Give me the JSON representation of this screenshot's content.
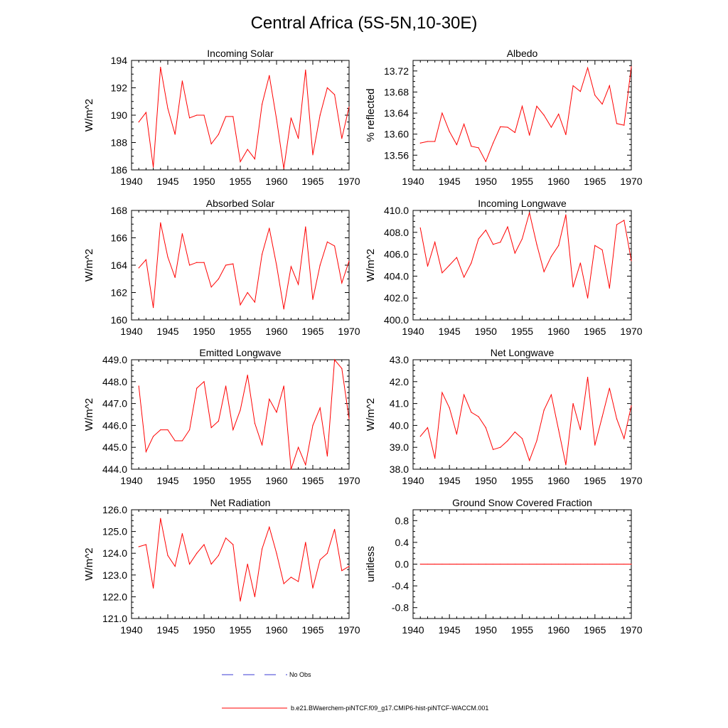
{
  "figure": {
    "title": "Central Africa (5S-5N,10-30E)"
  },
  "legend": {
    "entries": [
      {
        "label": "No Obs",
        "color": "#3b3bd6",
        "style": "dashed"
      },
      {
        "label": "b.e21.BWaerchem-piNTCF.f09_g17.CMIP6-hist-piNTCF-WACCM.001",
        "color": "#ff0000",
        "style": "solid"
      }
    ]
  },
  "chart_data": [
    {
      "type": "line",
      "title": "Incoming Solar",
      "ylabel": "W/m^2",
      "xlim": [
        1940,
        1970
      ],
      "ylim": [
        186,
        194
      ],
      "xticks": [
        "1940",
        "1945",
        "1950",
        "1955",
        "1960",
        "1965",
        "1970"
      ],
      "yticks": [
        "186",
        "188",
        "190",
        "192",
        "194"
      ],
      "ytick_values": [
        186,
        188,
        190,
        192,
        194
      ],
      "color": "#ff0000",
      "x": [
        1941,
        1942,
        1943,
        1944,
        1945,
        1946,
        1947,
        1948,
        1949,
        1950,
        1951,
        1952,
        1953,
        1954,
        1955,
        1956,
        1957,
        1958,
        1959,
        1960,
        1961,
        1962,
        1963,
        1964,
        1965,
        1966,
        1967,
        1968,
        1969,
        1970
      ],
      "values": [
        189.5,
        190.2,
        186.2,
        193.5,
        190.5,
        188.6,
        192.5,
        189.8,
        190.0,
        190.0,
        187.9,
        188.6,
        189.9,
        189.9,
        186.6,
        187.5,
        186.8,
        190.8,
        192.9,
        189.7,
        186.1,
        189.8,
        188.3,
        193.3,
        187.1,
        190.0,
        192.0,
        191.5,
        188.3,
        190.6
      ]
    },
    {
      "type": "line",
      "title": "Albedo",
      "ylabel": "% reflected",
      "xlim": [
        1940,
        1970
      ],
      "ylim": [
        13.532,
        13.74
      ],
      "xticks": [
        "1940",
        "1945",
        "1950",
        "1955",
        "1960",
        "1965",
        "1970"
      ],
      "yticks": [
        "13.56",
        "13.60",
        "13.64",
        "13.68",
        "13.72"
      ],
      "ytick_values": [
        13.56,
        13.6,
        13.64,
        13.68,
        13.72
      ],
      "color": "#ff0000",
      "x": [
        1941,
        1942,
        1943,
        1944,
        1945,
        1946,
        1947,
        1948,
        1949,
        1950,
        1951,
        1952,
        1953,
        1954,
        1955,
        1956,
        1957,
        1958,
        1959,
        1960,
        1961,
        1962,
        1963,
        1964,
        1965,
        1966,
        1967,
        1968,
        1969,
        1970
      ],
      "values": [
        13.583,
        13.586,
        13.586,
        13.64,
        13.605,
        13.58,
        13.619,
        13.577,
        13.574,
        13.548,
        13.583,
        13.614,
        13.613,
        13.603,
        13.653,
        13.598,
        13.653,
        13.636,
        13.613,
        13.638,
        13.599,
        13.692,
        13.681,
        13.726,
        13.674,
        13.657,
        13.692,
        13.62,
        13.617,
        13.728
      ]
    },
    {
      "type": "line",
      "title": "Absorbed Solar",
      "ylabel": "W/m^2",
      "xlim": [
        1940,
        1970
      ],
      "ylim": [
        160,
        168
      ],
      "xticks": [
        "1940",
        "1945",
        "1950",
        "1955",
        "1960",
        "1965",
        "1970"
      ],
      "yticks": [
        "160",
        "162",
        "164",
        "166",
        "168"
      ],
      "ytick_values": [
        160,
        162,
        164,
        166,
        168
      ],
      "color": "#ff0000",
      "x": [
        1941,
        1942,
        1943,
        1944,
        1945,
        1946,
        1947,
        1948,
        1949,
        1950,
        1951,
        1952,
        1953,
        1954,
        1955,
        1956,
        1957,
        1958,
        1959,
        1960,
        1961,
        1962,
        1963,
        1964,
        1965,
        1966,
        1967,
        1968,
        1969,
        1970
      ],
      "values": [
        163.8,
        164.4,
        160.9,
        167.1,
        164.6,
        163.1,
        166.3,
        164.0,
        164.2,
        164.2,
        162.4,
        163.0,
        164.0,
        164.1,
        161.1,
        162.0,
        161.3,
        164.8,
        166.7,
        164.0,
        160.8,
        163.9,
        162.6,
        166.8,
        161.5,
        164.0,
        165.7,
        165.4,
        162.7,
        164.3
      ]
    },
    {
      "type": "line",
      "title": "Incoming Longwave",
      "ylabel": "W/m^2",
      "xlim": [
        1940,
        1970
      ],
      "ylim": [
        400,
        410
      ],
      "xticks": [
        "1940",
        "1945",
        "1950",
        "1955",
        "1960",
        "1965",
        "1970"
      ],
      "yticks": [
        "400.0",
        "402.0",
        "404.0",
        "406.0",
        "408.0",
        "410.0"
      ],
      "ytick_values": [
        400,
        402,
        404,
        406,
        408,
        410
      ],
      "color": "#ff0000",
      "x": [
        1941,
        1942,
        1943,
        1944,
        1945,
        1946,
        1947,
        1948,
        1949,
        1950,
        1951,
        1952,
        1953,
        1954,
        1955,
        1956,
        1957,
        1958,
        1959,
        1960,
        1961,
        1962,
        1963,
        1964,
        1965,
        1966,
        1967,
        1968,
        1969,
        1970
      ],
      "values": [
        408.4,
        404.9,
        407.1,
        404.3,
        405.0,
        405.7,
        403.9,
        405.2,
        407.4,
        408.2,
        406.9,
        407.1,
        408.5,
        406.1,
        407.4,
        409.8,
        406.9,
        404.4,
        405.8,
        406.8,
        409.6,
        403.0,
        405.2,
        402.0,
        406.8,
        406.4,
        402.9,
        408.7,
        409.1,
        405.4
      ]
    },
    {
      "type": "line",
      "title": "Emitted Longwave",
      "ylabel": "W/m^2",
      "xlim": [
        1940,
        1970
      ],
      "ylim": [
        444,
        449
      ],
      "xticks": [
        "1940",
        "1945",
        "1950",
        "1955",
        "1960",
        "1965",
        "1970"
      ],
      "yticks": [
        "444.0",
        "445.0",
        "446.0",
        "447.0",
        "448.0",
        "449.0"
      ],
      "ytick_values": [
        444,
        445,
        446,
        447,
        448,
        449
      ],
      "color": "#ff0000",
      "x": [
        1941,
        1942,
        1943,
        1944,
        1945,
        1946,
        1947,
        1948,
        1949,
        1950,
        1951,
        1952,
        1953,
        1954,
        1955,
        1956,
        1957,
        1958,
        1959,
        1960,
        1961,
        1962,
        1963,
        1964,
        1965,
        1966,
        1967,
        1968,
        1969,
        1970
      ],
      "values": [
        447.8,
        444.8,
        445.5,
        445.8,
        445.8,
        445.3,
        445.3,
        445.8,
        447.7,
        448.0,
        445.9,
        446.2,
        447.8,
        445.8,
        446.7,
        448.3,
        446.1,
        445.1,
        447.2,
        446.6,
        447.8,
        444.0,
        445.0,
        444.2,
        446.0,
        446.8,
        444.6,
        449.0,
        448.6,
        446.3
      ]
    },
    {
      "type": "line",
      "title": "Net Longwave",
      "ylabel": "W/m^2",
      "xlim": [
        1940,
        1970
      ],
      "ylim": [
        38,
        43
      ],
      "xticks": [
        "1940",
        "1945",
        "1950",
        "1955",
        "1960",
        "1965",
        "1970"
      ],
      "yticks": [
        "38.0",
        "39.0",
        "40.0",
        "41.0",
        "42.0",
        "43.0"
      ],
      "ytick_values": [
        38,
        39,
        40,
        41,
        42,
        43
      ],
      "color": "#ff0000",
      "x": [
        1941,
        1942,
        1943,
        1944,
        1945,
        1946,
        1947,
        1948,
        1949,
        1950,
        1951,
        1952,
        1953,
        1954,
        1955,
        1956,
        1957,
        1958,
        1959,
        1960,
        1961,
        1962,
        1963,
        1964,
        1965,
        1966,
        1967,
        1968,
        1969,
        1970
      ],
      "values": [
        39.5,
        39.9,
        38.5,
        41.5,
        40.8,
        39.6,
        41.4,
        40.6,
        40.4,
        39.9,
        38.9,
        39.0,
        39.3,
        39.7,
        39.4,
        38.4,
        39.3,
        40.7,
        41.4,
        39.8,
        38.2,
        41.0,
        39.8,
        42.2,
        39.1,
        40.4,
        41.7,
        40.3,
        39.4,
        40.9
      ]
    },
    {
      "type": "line",
      "title": "Net Radiation",
      "ylabel": "W/m^2",
      "xlim": [
        1940,
        1970
      ],
      "ylim": [
        121,
        126
      ],
      "xticks": [
        "1940",
        "1945",
        "1950",
        "1955",
        "1960",
        "1965",
        "1970"
      ],
      "yticks": [
        "121.0",
        "122.0",
        "123.0",
        "124.0",
        "125.0",
        "126.0"
      ],
      "ytick_values": [
        121,
        122,
        123,
        124,
        125,
        126
      ],
      "color": "#ff0000",
      "x": [
        1941,
        1942,
        1943,
        1944,
        1945,
        1946,
        1947,
        1948,
        1949,
        1950,
        1951,
        1952,
        1953,
        1954,
        1955,
        1956,
        1957,
        1958,
        1959,
        1960,
        1961,
        1962,
        1963,
        1964,
        1965,
        1966,
        1967,
        1968,
        1969,
        1970
      ],
      "values": [
        124.3,
        124.4,
        122.4,
        125.6,
        123.9,
        123.4,
        124.9,
        123.5,
        124.0,
        124.4,
        123.5,
        123.9,
        124.7,
        124.4,
        121.8,
        123.5,
        122.0,
        124.2,
        125.2,
        124.0,
        122.6,
        122.9,
        122.7,
        124.5,
        122.4,
        123.7,
        124.0,
        125.1,
        123.2,
        123.4
      ]
    },
    {
      "type": "line",
      "title": "Ground Snow Covered Fraction",
      "ylabel": "unitless",
      "xlim": [
        1940,
        1970
      ],
      "ylim": [
        -1.0,
        1.0
      ],
      "xticks": [
        "1940",
        "1945",
        "1950",
        "1955",
        "1960",
        "1965",
        "1970"
      ],
      "yticks": [
        "-0.8",
        "-0.4",
        "0.0",
        "0.4",
        "0.8"
      ],
      "ytick_values": [
        -0.8,
        -0.4,
        0.0,
        0.4,
        0.8
      ],
      "color": "#ff0000",
      "x": [
        1941,
        1942,
        1943,
        1944,
        1945,
        1946,
        1947,
        1948,
        1949,
        1950,
        1951,
        1952,
        1953,
        1954,
        1955,
        1956,
        1957,
        1958,
        1959,
        1960,
        1961,
        1962,
        1963,
        1964,
        1965,
        1966,
        1967,
        1968,
        1969,
        1970
      ],
      "values": [
        0,
        0,
        0,
        0,
        0,
        0,
        0,
        0,
        0,
        0,
        0,
        0,
        0,
        0,
        0,
        0,
        0,
        0,
        0,
        0,
        0,
        0,
        0,
        0,
        0,
        0,
        0,
        0,
        0,
        0
      ]
    }
  ]
}
